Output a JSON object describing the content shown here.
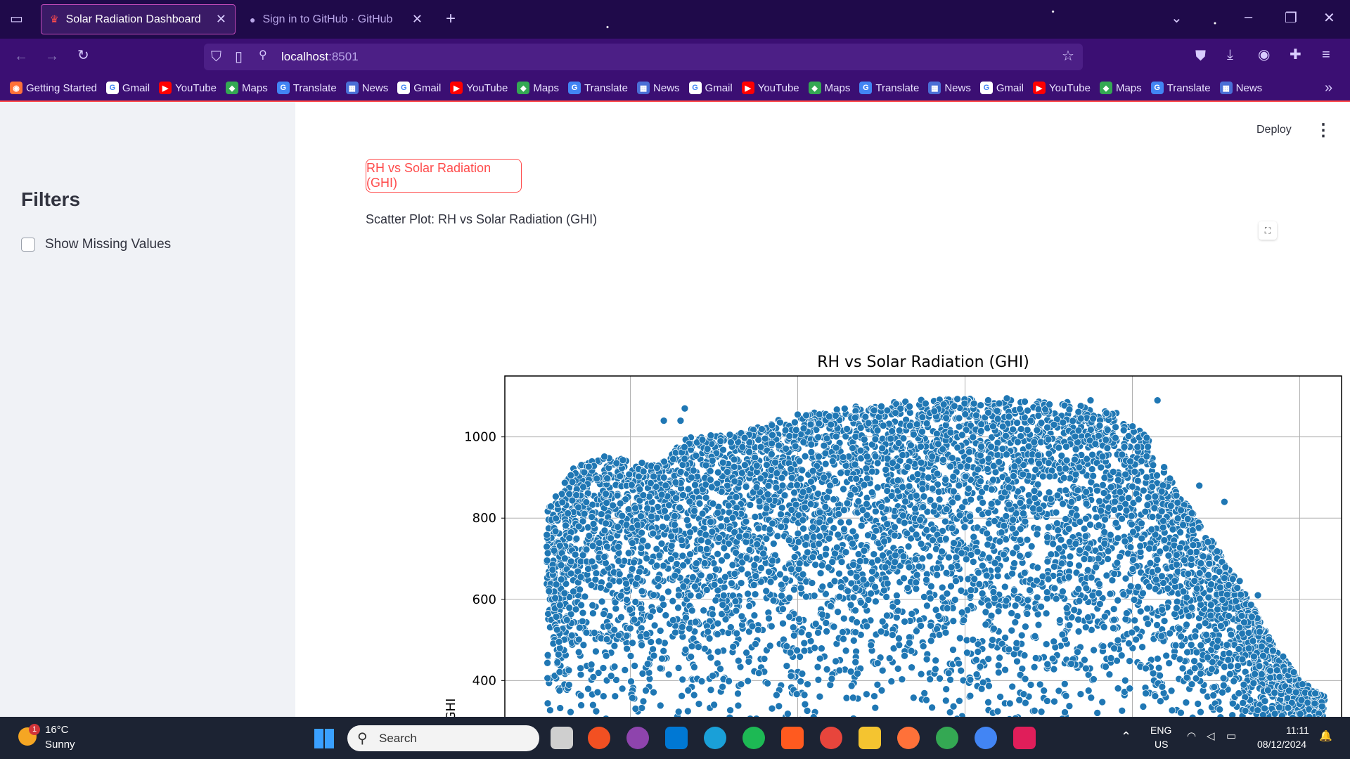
{
  "browser": {
    "tabs": [
      {
        "title": "Solar Radiation Dashboard",
        "active": true
      },
      {
        "title": "Sign in to GitHub · GitHub",
        "active": false
      }
    ],
    "url": {
      "host": "localhost",
      "port": ":8501"
    },
    "bookmarks": [
      {
        "label": "Getting Started",
        "icon": "firefox-icon"
      },
      {
        "label": "Gmail",
        "icon": "google-icon"
      },
      {
        "label": "YouTube",
        "icon": "youtube-icon"
      },
      {
        "label": "Maps",
        "icon": "maps-icon"
      },
      {
        "label": "Translate",
        "icon": "translate-icon"
      },
      {
        "label": "News",
        "icon": "news-icon"
      },
      {
        "label": "Gmail",
        "icon": "google-icon"
      },
      {
        "label": "YouTube",
        "icon": "youtube-icon"
      },
      {
        "label": "Maps",
        "icon": "maps-icon"
      },
      {
        "label": "Translate",
        "icon": "translate-icon"
      },
      {
        "label": "News",
        "icon": "news-icon"
      },
      {
        "label": "Gmail",
        "icon": "google-icon"
      },
      {
        "label": "YouTube",
        "icon": "youtube-icon"
      },
      {
        "label": "Maps",
        "icon": "maps-icon"
      },
      {
        "label": "Translate",
        "icon": "translate-icon"
      },
      {
        "label": "News",
        "icon": "news-icon"
      },
      {
        "label": "Gmail",
        "icon": "google-icon"
      },
      {
        "label": "YouTube",
        "icon": "youtube-icon"
      },
      {
        "label": "Maps",
        "icon": "maps-icon"
      },
      {
        "label": "Translate",
        "icon": "translate-icon"
      },
      {
        "label": "News",
        "icon": "news-icon"
      }
    ]
  },
  "sidebar": {
    "title": "Filters",
    "checkbox_label": "Show Missing Values",
    "checkbox_checked": false
  },
  "header": {
    "deploy_label": "Deploy"
  },
  "main": {
    "button_label": "RH vs Solar Radiation (GHI)",
    "caption": "Scatter Plot: RH vs Solar Radiation (GHI)"
  },
  "chart_data": {
    "type": "scatter",
    "title": "RH vs Solar Radiation (GHI)",
    "xlabel": "",
    "ylabel": "GHI",
    "ylim": [
      250,
      1150
    ],
    "xlim": [
      0,
      100
    ],
    "yticks": [
      400,
      600,
      800,
      1000
    ],
    "x_gridlines": [
      15,
      35,
      55,
      75,
      95
    ],
    "grid": true,
    "color": "#1f77b4",
    "upper_envelope": [
      {
        "x": 5,
        "y": 820
      },
      {
        "x": 8,
        "y": 920
      },
      {
        "x": 12,
        "y": 960
      },
      {
        "x": 18,
        "y": 930
      },
      {
        "x": 22,
        "y": 1000
      },
      {
        "x": 28,
        "y": 1010
      },
      {
        "x": 34,
        "y": 1050
      },
      {
        "x": 40,
        "y": 1070
      },
      {
        "x": 48,
        "y": 1090
      },
      {
        "x": 55,
        "y": 1095
      },
      {
        "x": 62,
        "y": 1090
      },
      {
        "x": 68,
        "y": 1085
      },
      {
        "x": 73,
        "y": 1060
      },
      {
        "x": 77,
        "y": 1000
      },
      {
        "x": 80,
        "y": 880
      },
      {
        "x": 84,
        "y": 760
      },
      {
        "x": 88,
        "y": 640
      },
      {
        "x": 91,
        "y": 520
      },
      {
        "x": 95,
        "y": 400
      },
      {
        "x": 98,
        "y": 360
      }
    ],
    "outliers": [
      {
        "x": 21,
        "y": 1040
      },
      {
        "x": 21.5,
        "y": 1070
      },
      {
        "x": 19,
        "y": 1040
      },
      {
        "x": 87,
        "y": 650
      },
      {
        "x": 90,
        "y": 610
      },
      {
        "x": 83,
        "y": 880
      },
      {
        "x": 86,
        "y": 840
      },
      {
        "x": 78,
        "y": 1090
      },
      {
        "x": 70,
        "y": 1090
      },
      {
        "x": 60,
        "y": 1095
      },
      {
        "x": 45,
        "y": 1075
      },
      {
        "x": 35,
        "y": 1055
      }
    ]
  },
  "taskbar": {
    "weather_temp": "16°C",
    "weather_desc": "Sunny",
    "weather_badge": "1",
    "search_label": "Search",
    "lang": "ENG",
    "region": "US",
    "time": "11:11",
    "date": "08/12/2024"
  }
}
